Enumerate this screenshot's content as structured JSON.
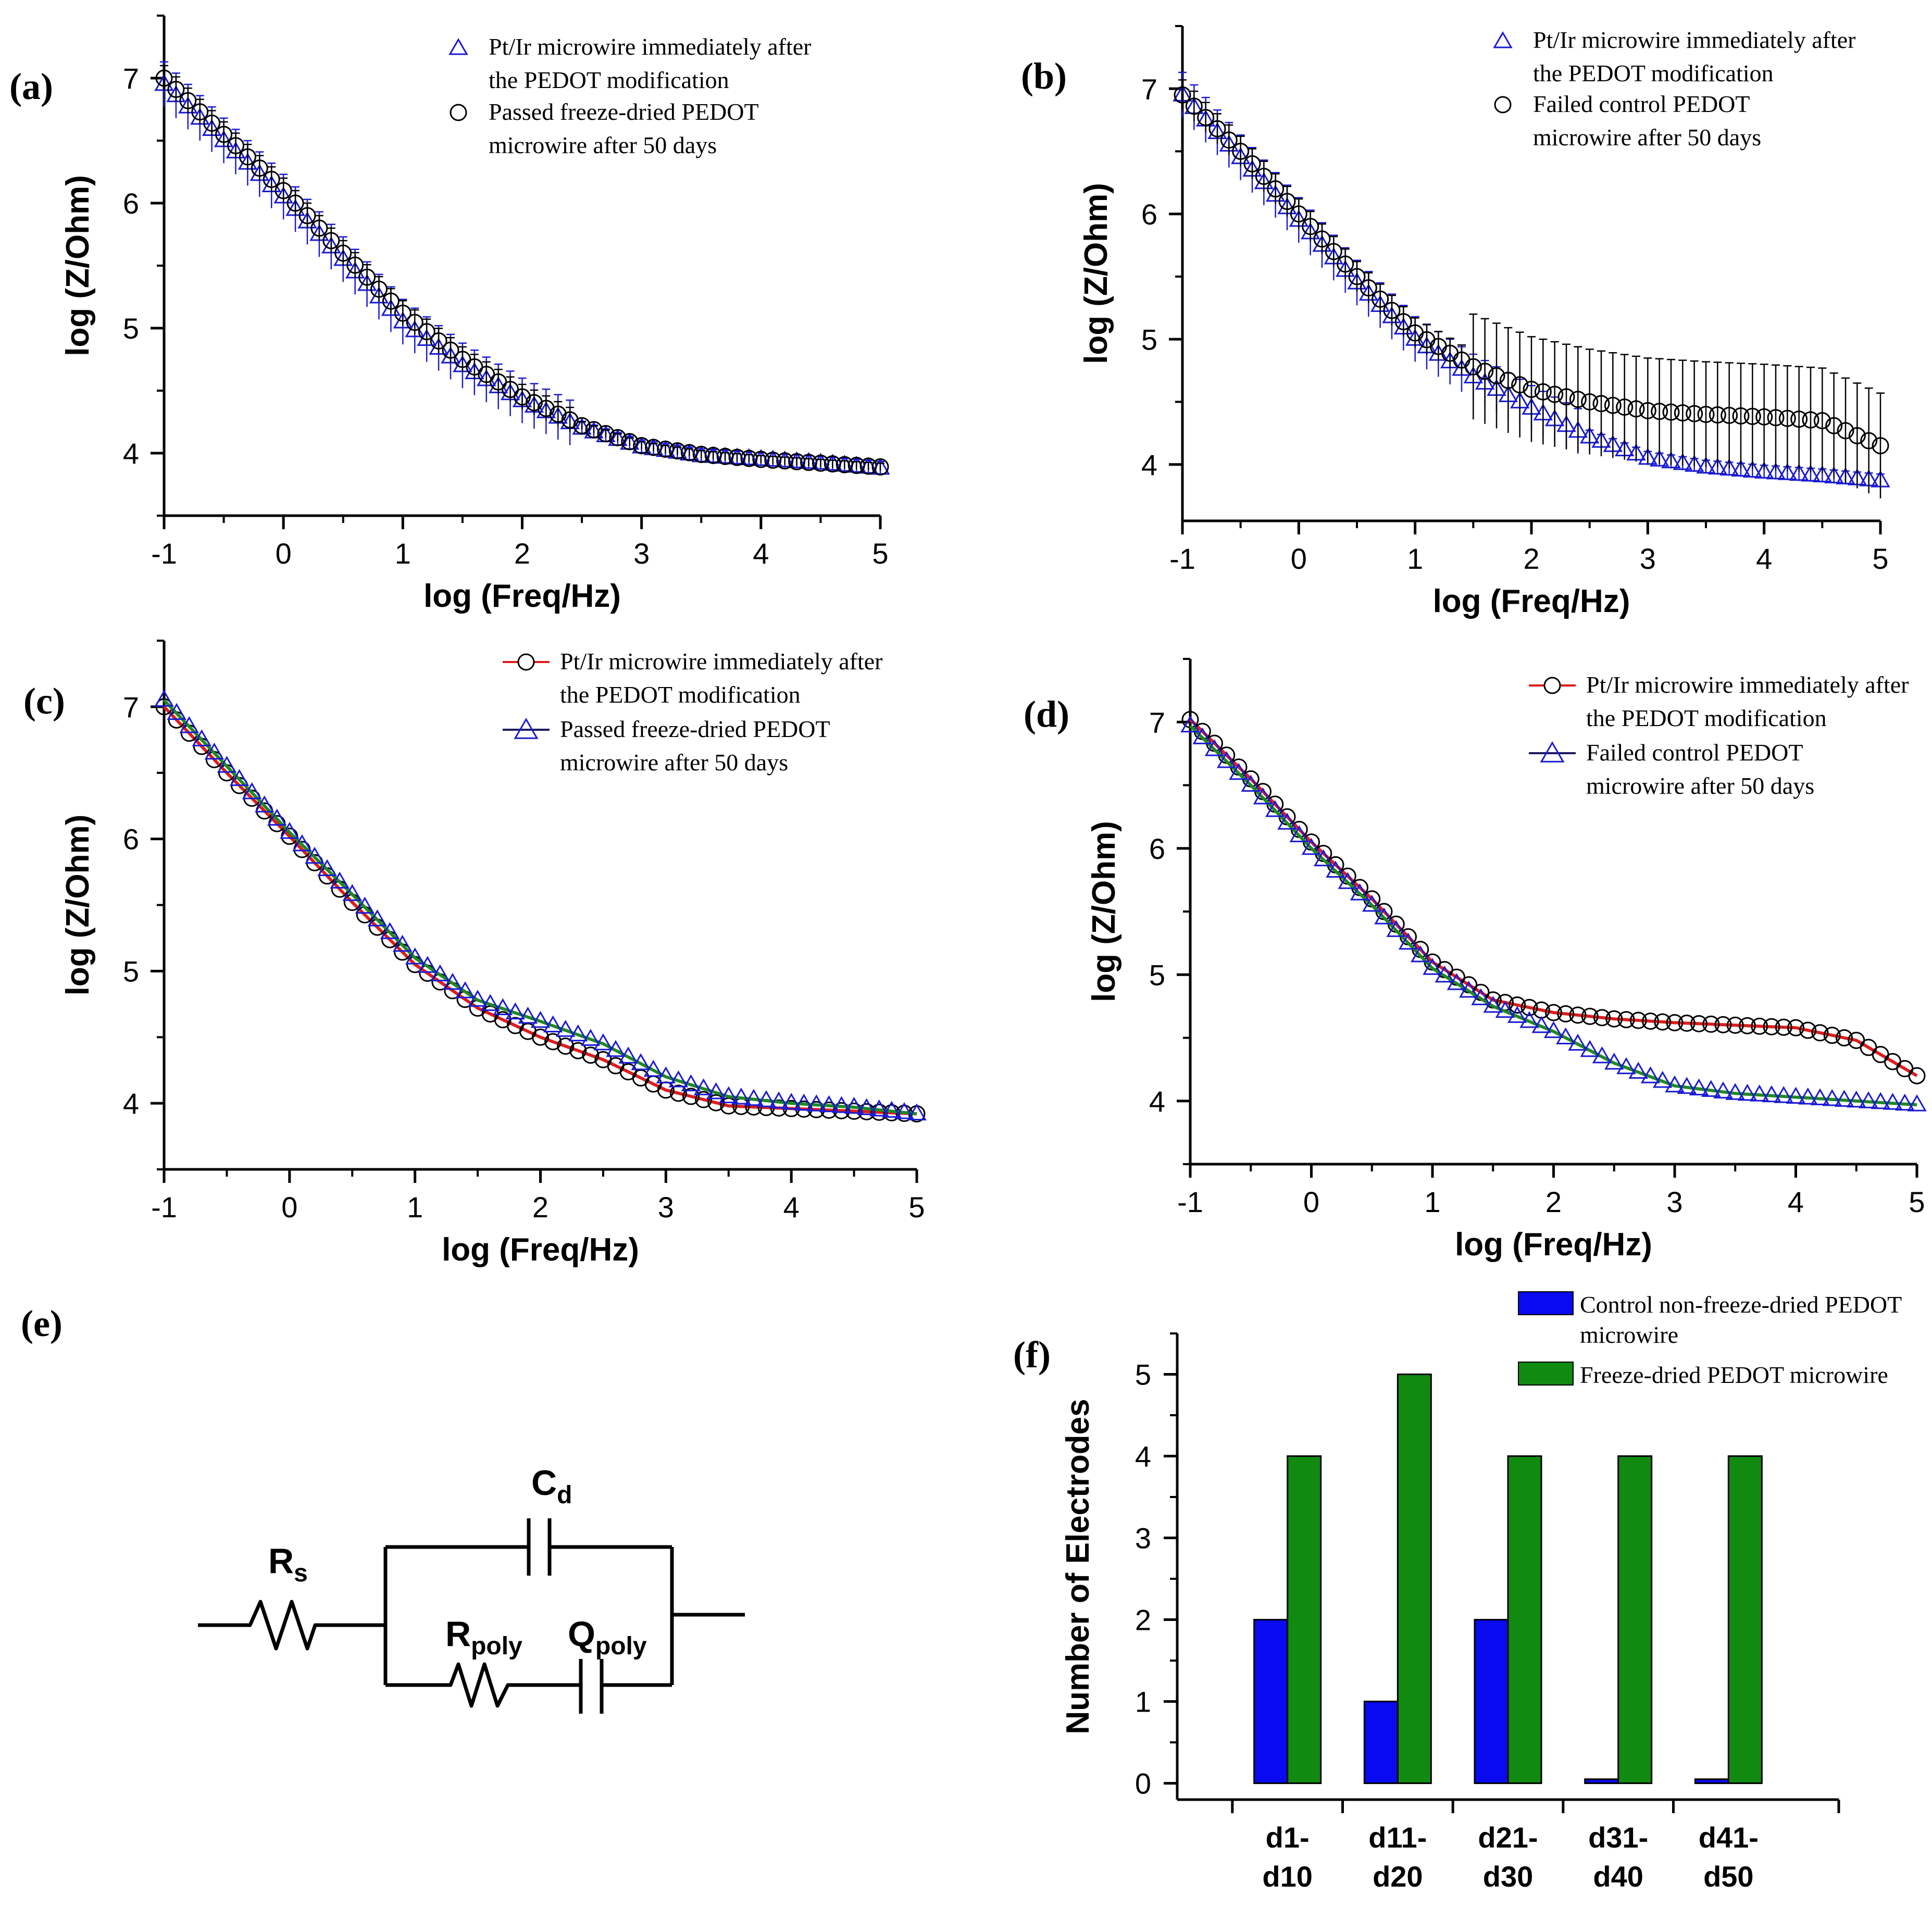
{
  "chart_data": [
    {
      "id": "a",
      "panel_label": "(a)",
      "type": "scatter",
      "xlabel": "log (Freq/Hz)",
      "ylabel": "log (Z/Ohm)",
      "xlim": [
        -1,
        5
      ],
      "ylim": [
        3.5,
        7.5
      ],
      "xticks": [
        "-1",
        "0",
        "1",
        "2",
        "3",
        "4",
        "5"
      ],
      "yticks": [
        "4",
        "5",
        "6",
        "7"
      ],
      "error_bars": true,
      "legend": [
        {
          "marker": "triangle",
          "color": "#1a1ad4",
          "text": [
            "Pt/Ir microwire immediately after",
            "the PEDOT modification"
          ]
        },
        {
          "marker": "circle",
          "color": "#000000",
          "text": [
            "Passed freeze-dried PEDOT",
            "microwire after 50 days"
          ]
        }
      ],
      "series": [
        {
          "name": "Pt/Ir microwire immediately after the PEDOT modification",
          "marker": "triangle",
          "color": "#1a1ad4",
          "x": [
            -1,
            -0.5,
            0,
            0.5,
            1,
            1.5,
            2,
            2.5,
            3,
            3.5,
            4,
            4.5,
            5
          ],
          "y": [
            6.95,
            6.5,
            6.05,
            5.55,
            5.05,
            4.7,
            4.42,
            4.2,
            4.05,
            3.98,
            3.95,
            3.92,
            3.88
          ],
          "err": 0.18
        },
        {
          "name": "Passed freeze-dried PEDOT microwire after 50 days",
          "marker": "circle",
          "color": "#000000",
          "x": [
            -1,
            -0.5,
            0,
            0.5,
            1,
            1.5,
            2,
            2.5,
            3,
            3.5,
            4,
            4.5,
            5
          ],
          "y": [
            7.0,
            6.55,
            6.1,
            5.6,
            5.12,
            4.75,
            4.45,
            4.22,
            4.06,
            3.99,
            3.95,
            3.92,
            3.89
          ],
          "err": 0.1
        }
      ]
    },
    {
      "id": "b",
      "panel_label": "(b)",
      "type": "scatter",
      "xlabel": "log (Freq/Hz)",
      "ylabel": "log (Z/Ohm)",
      "xlim": [
        -1,
        5
      ],
      "ylim": [
        3.55,
        7.5
      ],
      "xticks": [
        "-1",
        "0",
        "1",
        "2",
        "3",
        "4",
        "5"
      ],
      "yticks": [
        "4",
        "5",
        "6",
        "7"
      ],
      "error_bars": true,
      "legend": [
        {
          "marker": "triangle",
          "color": "#1a1ad4",
          "text": [
            "Pt/Ir microwire immediately after",
            "the PEDOT modification"
          ]
        },
        {
          "marker": "circle",
          "color": "#000000",
          "text": [
            "Failed control PEDOT",
            "microwire after 50 days"
          ]
        }
      ],
      "series": [
        {
          "name": "Pt/Ir microwire immediately after the PEDOT modification",
          "marker": "triangle",
          "color": "#1a1ad4",
          "x": [
            -1,
            -0.5,
            0,
            0.5,
            1,
            1.5,
            2,
            2.5,
            3,
            3.5,
            4,
            4.5,
            5
          ],
          "y": [
            6.95,
            6.45,
            5.95,
            5.45,
            5.0,
            4.7,
            4.45,
            4.22,
            4.05,
            3.98,
            3.94,
            3.91,
            3.87
          ],
          "err": 0.18
        },
        {
          "name": "Failed control PEDOT microwire after 50 days",
          "marker": "circle",
          "color": "#000000",
          "x": [
            -1,
            -0.5,
            0,
            0.5,
            1,
            1.5,
            2,
            2.5,
            3,
            3.5,
            4,
            4.5,
            5
          ],
          "y": [
            6.95,
            6.5,
            6.0,
            5.5,
            5.05,
            4.78,
            4.6,
            4.5,
            4.43,
            4.4,
            4.38,
            4.35,
            4.15
          ],
          "err": 0.42
        }
      ]
    },
    {
      "id": "c",
      "panel_label": "(c)",
      "type": "line",
      "xlabel": "log (Freq/Hz)",
      "ylabel": "log (Z/Ohm)",
      "xlim": [
        -1,
        5
      ],
      "ylim": [
        3.5,
        7.5
      ],
      "xticks": [
        "-1",
        "0",
        "1",
        "2",
        "3",
        "4",
        "5"
      ],
      "yticks": [
        "4",
        "5",
        "6",
        "7"
      ],
      "legend": [
        {
          "marker": "circle",
          "color": "#000000",
          "line": "#e01b1b",
          "text": [
            "Pt/Ir microwire immediately after",
            "the PEDOT modification"
          ]
        },
        {
          "marker": "triangle",
          "color": "#1a1ad4",
          "line": "#1a1a60",
          "text": [
            "Passed freeze-dried PEDOT",
            "microwire after 50 days"
          ]
        }
      ],
      "series": [
        {
          "name": "Pt/Ir microwire immediately after the PEDOT modification",
          "marker": "circle",
          "color": "#000000",
          "fit_color": "#e01b1b",
          "x": [
            -1,
            -0.5,
            0,
            0.5,
            1,
            1.5,
            2,
            2.5,
            3,
            3.5,
            4,
            4.5,
            5
          ],
          "y": [
            7.0,
            6.5,
            6.02,
            5.52,
            5.05,
            4.72,
            4.5,
            4.33,
            4.1,
            3.98,
            3.96,
            3.94,
            3.92
          ]
        },
        {
          "name": "Passed freeze-dried PEDOT microwire after 50 days",
          "marker": "triangle",
          "color": "#1a1ad4",
          "fit_color": "#1e8a1e",
          "x": [
            -1,
            -0.5,
            0,
            0.5,
            1,
            1.5,
            2,
            2.5,
            3,
            3.5,
            4,
            4.5,
            5
          ],
          "y": [
            7.05,
            6.55,
            6.05,
            5.58,
            5.1,
            4.78,
            4.62,
            4.45,
            4.2,
            4.05,
            4.0,
            3.97,
            3.92
          ]
        }
      ]
    },
    {
      "id": "d",
      "panel_label": "(d)",
      "type": "line",
      "xlabel": "log (Freq/Hz)",
      "ylabel": "log (Z/Ohm)",
      "xlim": [
        -1,
        5
      ],
      "ylim": [
        3.5,
        7.5
      ],
      "xticks": [
        "-1",
        "0",
        "1",
        "2",
        "3",
        "4",
        "5"
      ],
      "yticks": [
        "4",
        "5",
        "6",
        "7"
      ],
      "legend": [
        {
          "marker": "circle",
          "color": "#000000",
          "line": "#e01b1b",
          "text": [
            "Pt/Ir microwire immediately after",
            "the PEDOT modification"
          ]
        },
        {
          "marker": "triangle",
          "color": "#1a1ad4",
          "line": "#1a1a60",
          "text": [
            "Failed control PEDOT",
            "microwire after 50 days"
          ]
        }
      ],
      "series": [
        {
          "name": "Pt/Ir microwire immediately after the PEDOT modification",
          "marker": "circle",
          "color": "#000000",
          "fit_color": "#e01b1b",
          "x": [
            -1,
            -0.5,
            0,
            0.5,
            1,
            1.5,
            2,
            2.5,
            3,
            3.5,
            4,
            4.5,
            5
          ],
          "y": [
            7.02,
            6.55,
            6.05,
            5.6,
            5.1,
            4.8,
            4.7,
            4.65,
            4.62,
            4.6,
            4.58,
            4.48,
            4.2
          ]
        },
        {
          "name": "Failed control PEDOT microwire after 50 days",
          "marker": "triangle",
          "color": "#1a1ad4",
          "fit_color": "#1e8a1e",
          "x": [
            -1,
            -0.5,
            0,
            0.5,
            1,
            1.5,
            2,
            2.5,
            3,
            3.5,
            4,
            4.5,
            5
          ],
          "y": [
            6.97,
            6.5,
            6.0,
            5.55,
            5.05,
            4.75,
            4.55,
            4.3,
            4.12,
            4.06,
            4.03,
            4.0,
            3.97
          ]
        }
      ]
    },
    {
      "id": "f",
      "panel_label": "(f)",
      "type": "bar",
      "ylabel": "Number of Electrodes",
      "ylim": [
        -0.2,
        5.5
      ],
      "yticks": [
        "0",
        "1",
        "2",
        "3",
        "4",
        "5"
      ],
      "categories": [
        [
          "d1-",
          "d10"
        ],
        [
          "d11-",
          "d20"
        ],
        [
          "d21-",
          "d30"
        ],
        [
          "d31-",
          "d40"
        ],
        [
          "d41-",
          "d50"
        ]
      ],
      "legend": [
        {
          "color": "#0a0af0",
          "text": [
            "Control non-freeze-dried PEDOT",
            "microwire"
          ]
        },
        {
          "color": "#108a10",
          "text": [
            "Freeze-dried PEDOT microwire"
          ]
        }
      ],
      "series": [
        {
          "name": "Control non-freeze-dried PEDOT microwire",
          "color": "#0a0af0",
          "values": [
            2,
            1,
            2,
            0.05,
            0.05
          ]
        },
        {
          "name": "Freeze-dried PEDOT microwire",
          "color": "#108a10",
          "values": [
            4,
            5,
            4,
            4,
            4
          ]
        }
      ]
    }
  ],
  "circuit": {
    "panel_label": "(e)",
    "Rs": {
      "main": "R",
      "sub": "s"
    },
    "Cd": {
      "main": "C",
      "sub": "d"
    },
    "Rpoly": {
      "main": "R",
      "sub": "poly"
    },
    "Qpoly": {
      "main": "Q",
      "sub": "poly"
    }
  }
}
